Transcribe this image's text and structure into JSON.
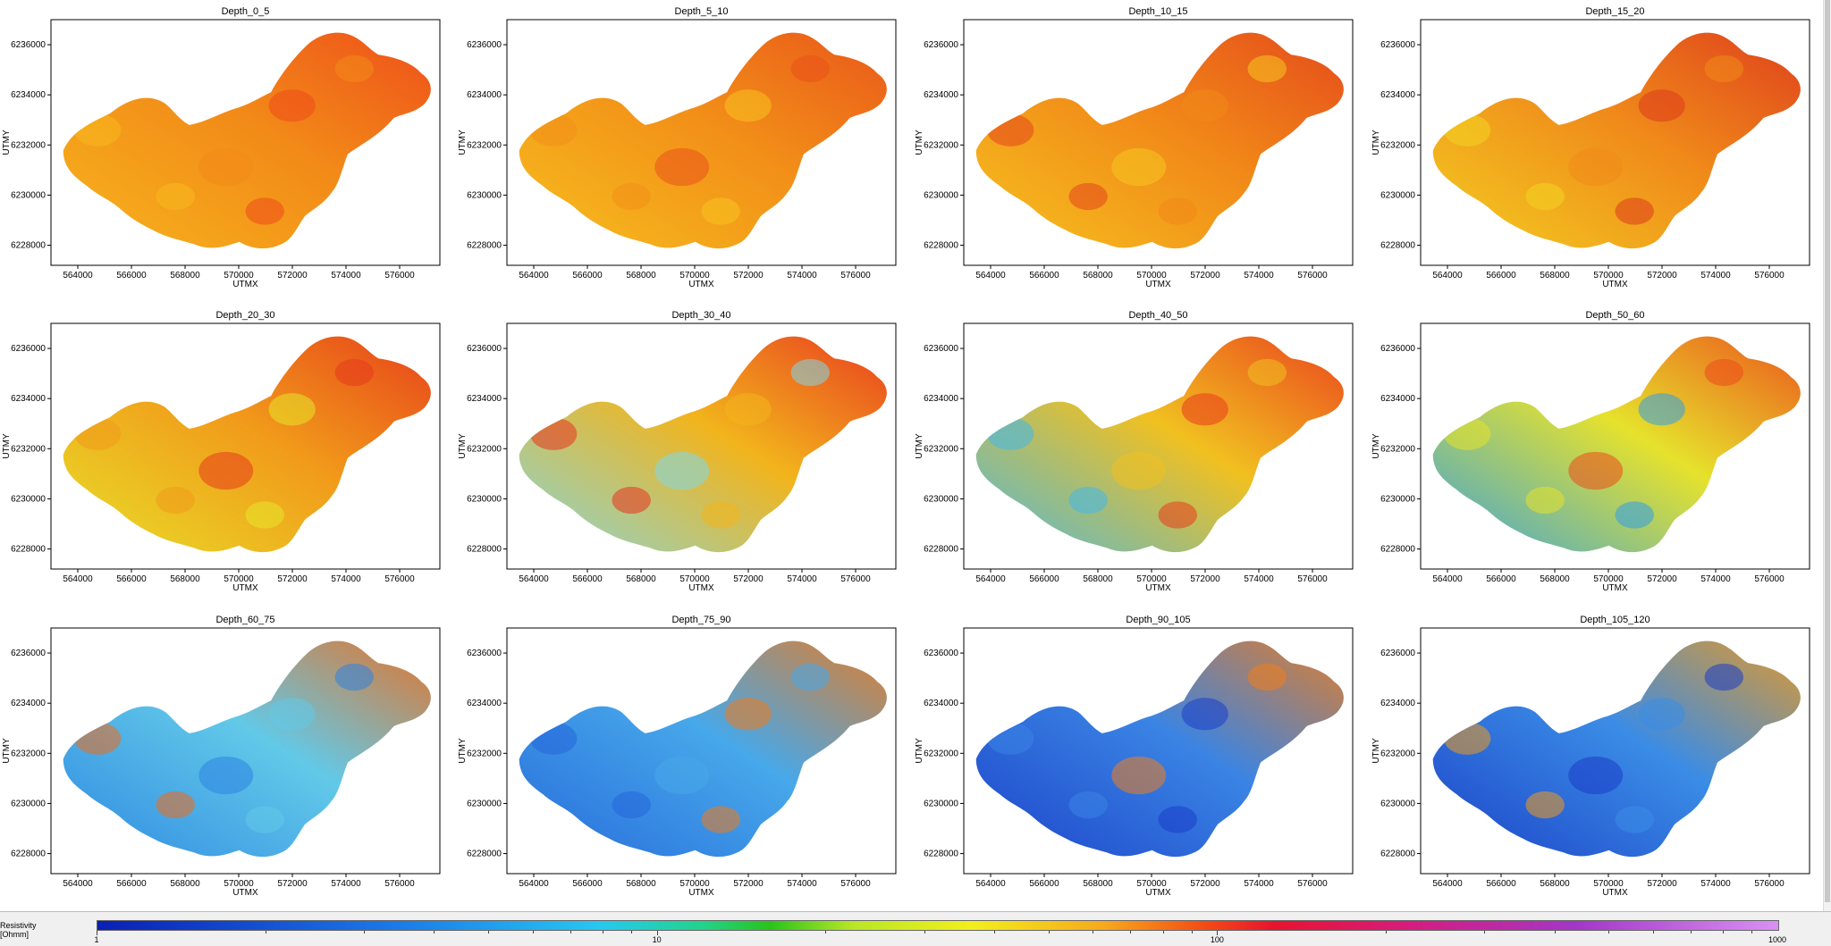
{
  "chart_data": {
    "type": "heatmap",
    "panel_titles": [
      "Depth_0_5",
      "Depth_5_10",
      "Depth_10_15",
      "Depth_15_20",
      "Depth_20_30",
      "Depth_30_40",
      "Depth_40_50",
      "Depth_50_60",
      "Depth_60_75",
      "Depth_75_90",
      "Depth_90_105",
      "Depth_105_120"
    ],
    "xlabel": "UTMX",
    "ylabel": "UTMY",
    "x_ticks": [
      "564000",
      "566000",
      "568000",
      "570000",
      "572000",
      "574000",
      "576000"
    ],
    "y_ticks": [
      "6236000",
      "6234000",
      "6232000",
      "6230000",
      "6228000"
    ],
    "xlim": [
      563000,
      577500
    ],
    "ylim": [
      6227200,
      6237000
    ],
    "colorbar": {
      "label_line1": "Resistivity",
      "label_line2": "[Ohmm]",
      "scale": "log",
      "range": [
        1,
        1000
      ],
      "tick_labels": [
        "1",
        "10",
        "100",
        "1000"
      ]
    },
    "colors": {
      "low": "#0a1fb5",
      "mid": "#f2ef1c",
      "high": "#d990f4"
    }
  }
}
